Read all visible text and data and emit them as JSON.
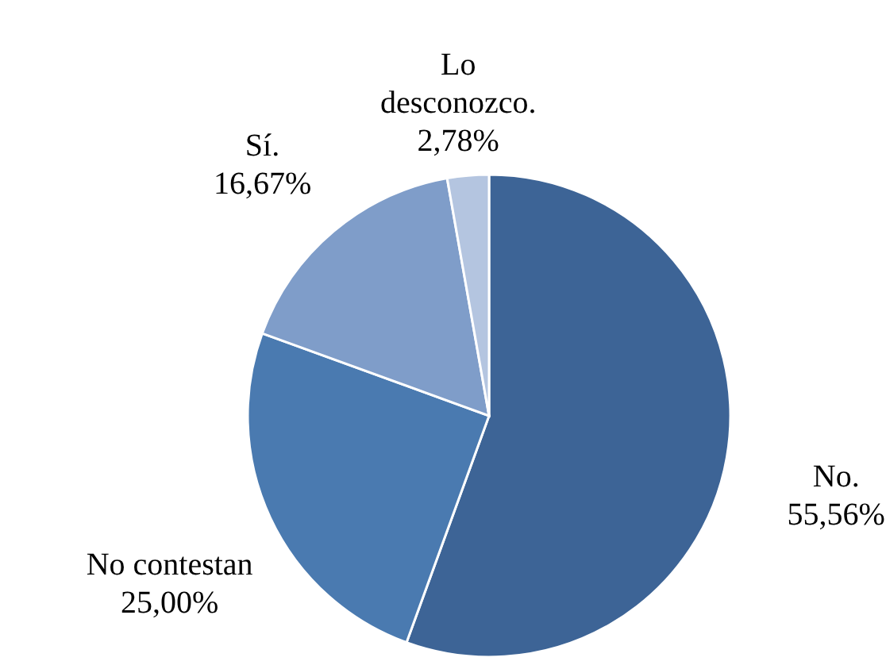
{
  "chart_data": {
    "type": "pie",
    "categories": [
      "No.",
      "No contestan",
      "Sí.",
      "Lo desconozco."
    ],
    "values": [
      55.56,
      25.0,
      16.67,
      2.78
    ],
    "colors": [
      "#3d6496",
      "#4a7ab0",
      "#7f9dc9",
      "#b4c5e0"
    ],
    "value_labels": [
      "55,56%",
      "25,00%",
      "16,67%",
      "2,78%"
    ],
    "legend": false
  }
}
